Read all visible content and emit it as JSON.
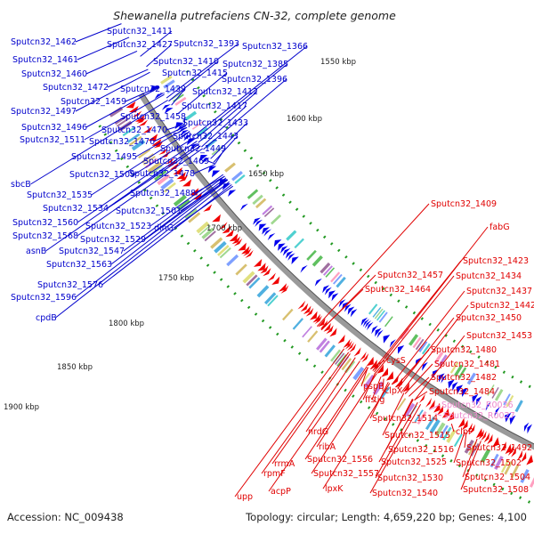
{
  "title": "Shewanella putrefaciens CN-32, complete genome",
  "accession": "Accession: NC_009438",
  "summary": "Topology: circular; Length: 4,659,220 bp; Genes: 4,100",
  "colors": {
    "forward_label": "#0000cc",
    "reverse_label": "#e00000",
    "rna_label": "#ee88cc",
    "backbone": "#888888",
    "dots": "#229922"
  },
  "ticks": [
    "1550 kbp",
    "1600 kbp",
    "1650 kbp",
    "1700 kbp",
    "1750 kbp",
    "1800 kbp",
    "1850 kbp",
    "1900 kbp"
  ],
  "forward_labels": [
    "Sputcn32_1411",
    "Sputcn32_1462",
    "Sputcn32_1427",
    "Sputcn32_1393",
    "Sputcn32_1366",
    "Sputcn32_1461",
    "Sputcn32_1410",
    "Sputcn32_1385",
    "Sputcn32_1460",
    "Sputcn32_1415",
    "Sputcn32_1396",
    "Sputcn32_1472",
    "Sputcn32_1439",
    "Sputcn32_1412",
    "Sputcn32_1459",
    "Sputcn32_1417",
    "Sputcn32_1497",
    "Sputcn32_1458",
    "Sputcn32_1433",
    "Sputcn32_1496",
    "Sputcn32_1470",
    "Sputcn32_1443",
    "Sputcn32_1511",
    "Sputcn32_1476",
    "Sputcn32_1449",
    "Sputcn32_1495",
    "Sputcn32_1469",
    "Sputcn32_1509",
    "Sputcn32_1478",
    "sbcB",
    "Sputcn32_1488",
    "Sputcn32_1535",
    "Sputcn32_1534",
    "Sputcn32_1501",
    "Sputcn32_1560",
    "Sputcn32_1523",
    "dinG",
    "Sputcn32_1568",
    "Sputcn32_1529",
    "asnB",
    "Sputcn32_1547",
    "Sputcn32_1563",
    "Sputcn32_1576",
    "Sputcn32_1596",
    "cpdB"
  ],
  "reverse_labels": [
    "Sputcn32_1409",
    "fabG",
    "Sputcn32_1423",
    "Sputcn32_1457",
    "Sputcn32_1434",
    "Sputcn32_1464",
    "Sputcn32_1437",
    "Sputcn32_1442",
    "Sputcn32_1450",
    "Sputcn32_1453",
    "Sputcn32_1480",
    "cysS",
    "Sputcn32_1481",
    "Sputcn32_1482",
    "pspB",
    "tig",
    "clpX",
    "Sputcn32_1484",
    "ffs",
    "Sputcn32_1514",
    "clpP",
    "Sputcn32_1515",
    "nrdG",
    "Sputcn32_1492",
    "ribA",
    "Sputcn32_1516",
    "Sputcn32_1556",
    "Sputcn32_1525",
    "Sputcn32_1502",
    "rrmA",
    "Sputcn32_1557",
    "Sputcn32_1530",
    "Sputcn32_1504",
    "rpmF",
    "lpxK",
    "Sputcn32_1540",
    "Sputcn32_1508",
    "acpP",
    "upp"
  ],
  "rna_labels": [
    "Sputcn32_R0026",
    "Sputcn32_R0027"
  ]
}
